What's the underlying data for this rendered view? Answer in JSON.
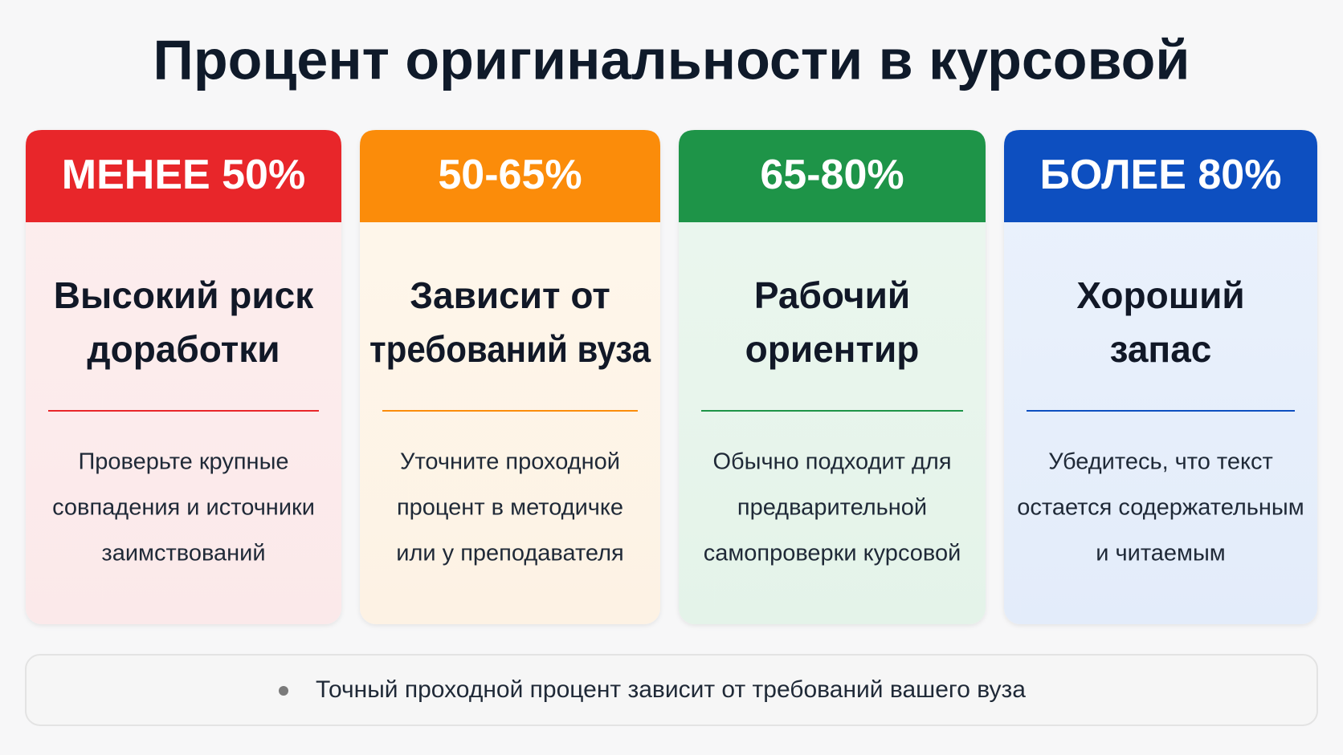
{
  "header": {
    "title": "Процент оригинальности в курсовой"
  },
  "cards": [
    {
      "label": "МЕНЕЕ 50%",
      "heading": [
        "Высокий риск",
        "доработки"
      ],
      "text": [
        "Проверьте крупные",
        "совпадения и источники",
        "заимствований"
      ]
    },
    {
      "label": "50-65%",
      "heading": [
        "Зависит от",
        "требований вуза"
      ],
      "text": [
        "Уточните проходной",
        "процент в методичке",
        "или у преподавателя"
      ]
    },
    {
      "label": "65-80%",
      "heading": [
        "Рабочий",
        "ориентир"
      ],
      "text": [
        "Обычно подходит для",
        "предварительной",
        "самопроверки курсовой"
      ]
    },
    {
      "label": "БОЛЕЕ 80%",
      "heading": [
        "Хороший",
        "запас"
      ],
      "text": [
        "Убедитесь, что текст",
        "остается содержательным",
        "и читаемым"
      ]
    }
  ],
  "footer": {
    "note": "Точный проходной процент зависит от требований вашего вуза"
  }
}
